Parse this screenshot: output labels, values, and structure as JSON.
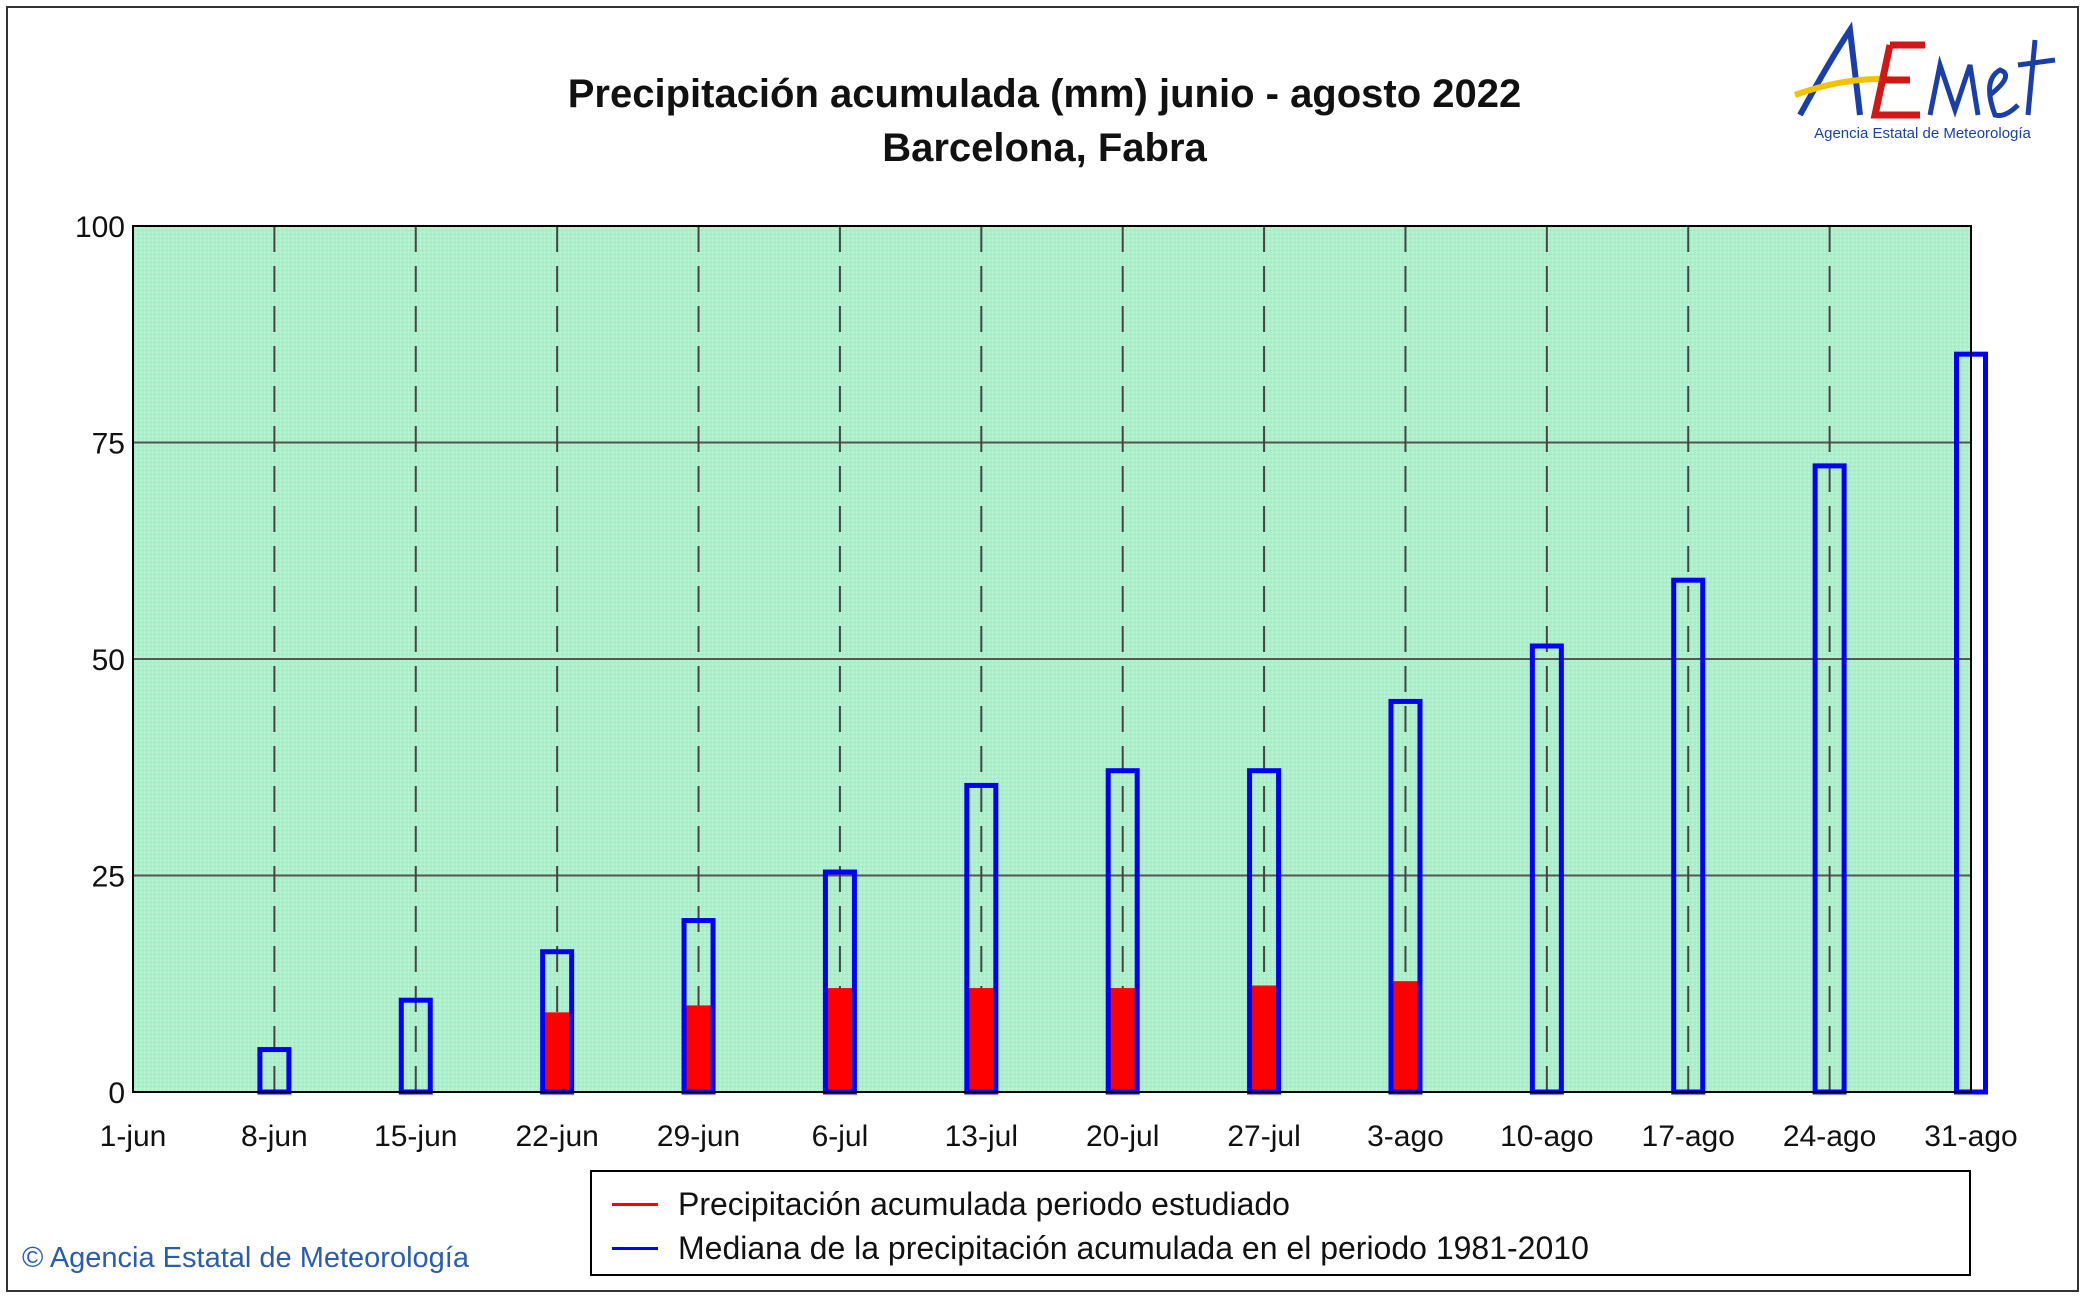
{
  "header": {
    "title": "Precipitación acumulada (mm) junio - agosto 2022",
    "subtitle": "Barcelona, Fabra",
    "logo_text": "AEMet",
    "logo_subtext": "Agencia Estatal de Meteorología"
  },
  "footer": {
    "copyright": "© Agencia Estatal de Meteorología"
  },
  "colors": {
    "plot_bg": "#aef0cc",
    "observed": "#ff0000",
    "median": "#0000ff"
  },
  "chart_data": {
    "type": "bar",
    "title": "Precipitación acumulada (mm) junio - agosto 2022",
    "subtitle": "Barcelona, Fabra",
    "xlabel": "",
    "ylabel": "",
    "ylim": [
      0,
      100
    ],
    "yticks": [
      "0",
      "25",
      "50",
      "75",
      "100"
    ],
    "ytick_values": [
      0,
      25,
      50,
      75,
      100
    ],
    "grid": true,
    "legend_placement": "bottom",
    "categories": [
      "1-jun",
      "8-jun",
      "15-jun",
      "22-jun",
      "29-jun",
      "6-jul",
      "13-jul",
      "20-jul",
      "27-jul",
      "3-ago",
      "10-ago",
      "17-ago",
      "24-ago",
      "31-ago"
    ],
    "series": [
      {
        "name": "Precipitación acumulada periodo estudiado",
        "values": [
          0,
          0,
          0,
          9.2,
          10.0,
          12.0,
          12.0,
          12.0,
          12.3,
          12.8,
          null,
          null,
          null,
          null
        ]
      },
      {
        "name": "Mediana de la precipitación acumulada en el periodo 1981-2010",
        "values": [
          0,
          4.9,
          10.6,
          16.2,
          19.8,
          25.4,
          35.4,
          37.1,
          37.1,
          45.1,
          51.5,
          59.1,
          72.3,
          85.2
        ]
      }
    ]
  }
}
